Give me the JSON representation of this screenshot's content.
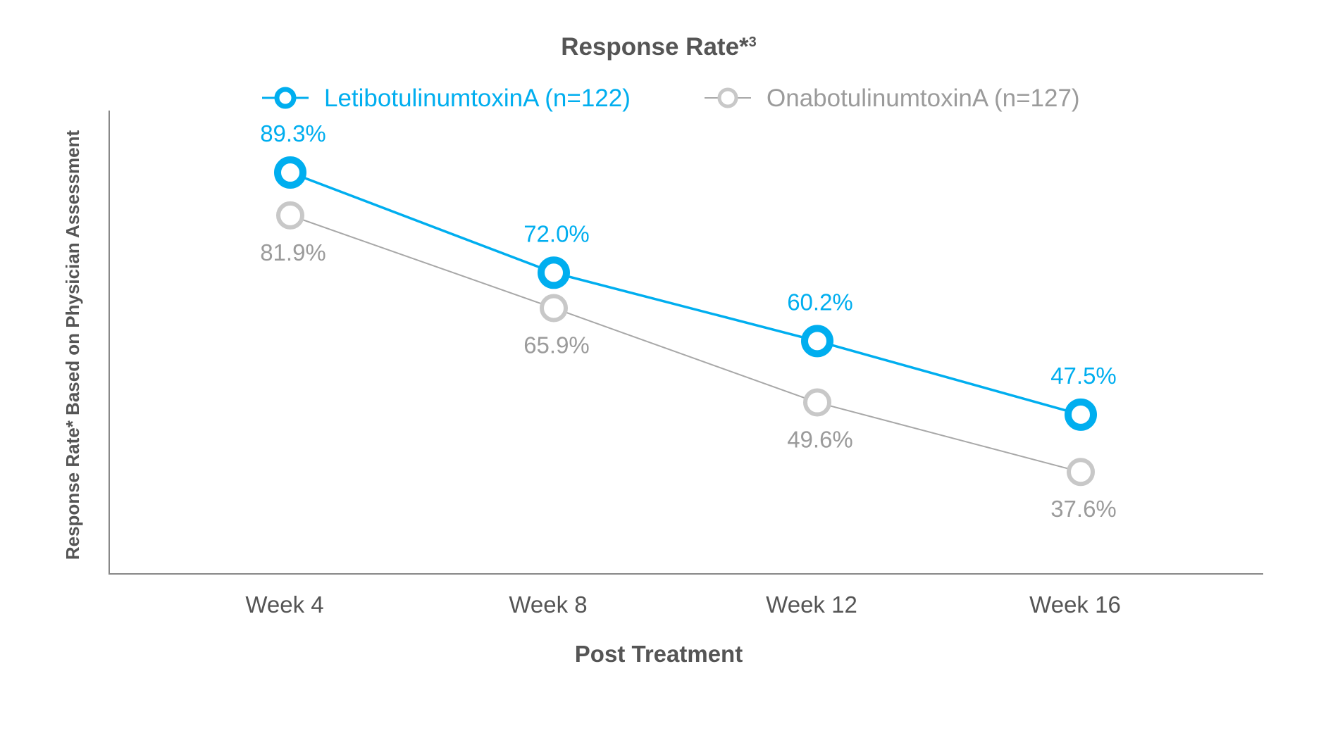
{
  "chart_data": {
    "type": "line",
    "title": "Response Rate*",
    "title_superscript": "3",
    "xlabel": "Post Treatment",
    "ylabel": "Response Rate* Based on Physician Assessment",
    "categories": [
      "Week 4",
      "Week 8",
      "Week 12",
      "Week 16"
    ],
    "ylim": [
      20,
      100
    ],
    "grid": false,
    "legend_position": "top",
    "series": [
      {
        "name": "LetibotulinumtoxinA (n=122)",
        "color": "#00aeef",
        "values": [
          89.3,
          72.0,
          60.2,
          47.5
        ],
        "labels": [
          "89.3%",
          "72.0%",
          "60.2%",
          "47.5%"
        ]
      },
      {
        "name": "OnabotulinumtoxinA (n=127)",
        "color": "#c8c8c8",
        "label_color": "#9b9b9b",
        "line_color": "#a8a8a8",
        "values": [
          81.9,
          65.9,
          49.6,
          37.6
        ],
        "labels": [
          "81.9%",
          "65.9%",
          "49.6%",
          "37.6%"
        ]
      }
    ]
  }
}
